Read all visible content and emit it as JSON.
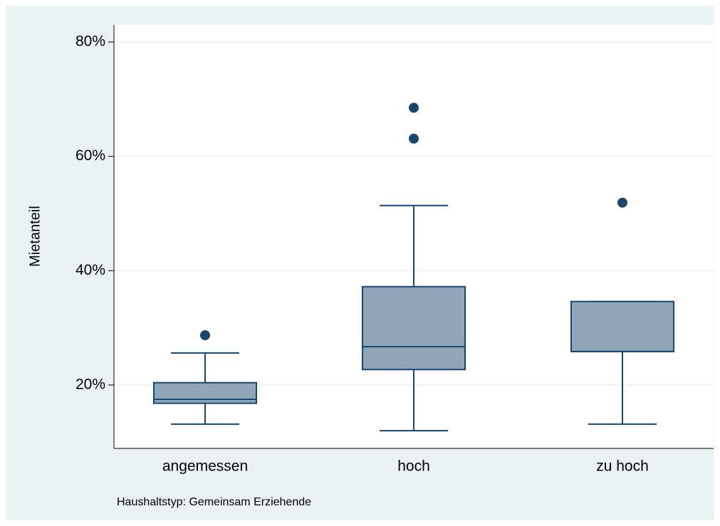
{
  "chart_data": {
    "type": "box",
    "ylabel": "Mietanteil",
    "note": "Haushaltstyp: Gemeinsam Erziehende",
    "categories": [
      "angemessen",
      "hoch",
      "zu hoch"
    ],
    "boxes": [
      {
        "low": 13.15,
        "q1": 16.8,
        "median": 17.5,
        "q3": 20.4,
        "high": 25.6,
        "outliers": [
          28.7
        ]
      },
      {
        "low": 12.0,
        "q1": 22.7,
        "median": 26.7,
        "q3": 37.2,
        "high": 51.4,
        "outliers": [
          68.5,
          63.1
        ]
      },
      {
        "low": 13.15,
        "q1": 25.85,
        "median": 25.85,
        "q3": 34.6,
        "high": 34.6,
        "outliers": [
          51.9
        ]
      }
    ],
    "box_color": "#8fa5b8",
    "line_color": "#1a476f",
    "ylim": [
      8.9,
      83
    ],
    "yticks": [
      {
        "value": 20,
        "label": "20%"
      },
      {
        "value": 40,
        "label": "40%"
      },
      {
        "value": 60,
        "label": "60%"
      },
      {
        "value": 80,
        "label": "80%"
      }
    ],
    "grid": true
  }
}
